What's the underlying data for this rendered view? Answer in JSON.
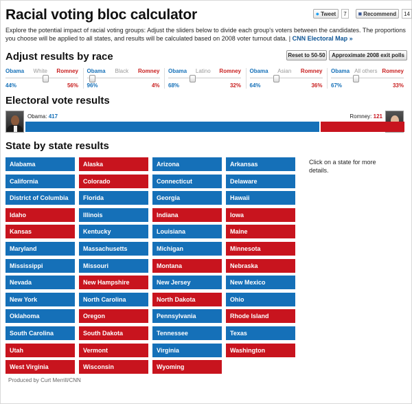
{
  "title": "Racial voting bloc calculator",
  "social": {
    "tweet_label": "Tweet",
    "tweet_count": "7",
    "recommend_label": "Recommend",
    "recommend_count": "14"
  },
  "intro": {
    "text": "Explore the potential impact of racial voting groups: Adjust the sliders below to divide each group's voters between the candidates. The proportions you choose will be applied to all states, and results will be calculated based on 2008 voter turnout data.",
    "separator": "|",
    "link": "CNN Electoral Map »"
  },
  "adjust": {
    "heading": "Adjust results by race",
    "reset_label": "Reset to 50-50",
    "approx_label": "Approximate 2008 exit polls"
  },
  "races": [
    {
      "name": "White",
      "left_label": "Obama",
      "right_label": "Romney",
      "obama_pct": "44%",
      "romney_pct": "56%",
      "obama_fraction": 0.44
    },
    {
      "name": "Black",
      "left_label": "Obama",
      "right_label": "Romney",
      "obama_pct": "96%",
      "romney_pct": "4%",
      "obama_fraction": 0.96
    },
    {
      "name": "Latino",
      "left_label": "Obama",
      "right_label": "Romney",
      "obama_pct": "68%",
      "romney_pct": "32%",
      "obama_fraction": 0.68
    },
    {
      "name": "Asian",
      "left_label": "Obama",
      "right_label": "Romney",
      "obama_pct": "64%",
      "romney_pct": "36%",
      "obama_fraction": 0.64
    },
    {
      "name": "All others",
      "left_label": "Obama",
      "right_label": "Romney",
      "obama_pct": "67%",
      "romney_pct": "33%",
      "obama_fraction": 0.67
    }
  ],
  "electoral": {
    "heading": "Electoral vote results",
    "obama_label": "Obama:",
    "obama_votes": "417",
    "romney_label": "Romney:",
    "romney_votes": "121",
    "obama_value": 417,
    "romney_value": 121
  },
  "states_section": {
    "heading": "State by state results",
    "note": "Click on a state for more details."
  },
  "states": [
    {
      "name": "Alabama",
      "winner": "obama"
    },
    {
      "name": "Alaska",
      "winner": "romney"
    },
    {
      "name": "Arizona",
      "winner": "obama"
    },
    {
      "name": "Arkansas",
      "winner": "obama"
    },
    {
      "name": "California",
      "winner": "obama"
    },
    {
      "name": "Colorado",
      "winner": "romney"
    },
    {
      "name": "Connecticut",
      "winner": "obama"
    },
    {
      "name": "Delaware",
      "winner": "obama"
    },
    {
      "name": "District of Columbia",
      "winner": "obama"
    },
    {
      "name": "Florida",
      "winner": "obama"
    },
    {
      "name": "Georgia",
      "winner": "obama"
    },
    {
      "name": "Hawaii",
      "winner": "obama"
    },
    {
      "name": "Idaho",
      "winner": "romney"
    },
    {
      "name": "Illinois",
      "winner": "obama"
    },
    {
      "name": "Indiana",
      "winner": "romney"
    },
    {
      "name": "Iowa",
      "winner": "romney"
    },
    {
      "name": "Kansas",
      "winner": "romney"
    },
    {
      "name": "Kentucky",
      "winner": "obama"
    },
    {
      "name": "Louisiana",
      "winner": "obama"
    },
    {
      "name": "Maine",
      "winner": "romney"
    },
    {
      "name": "Maryland",
      "winner": "obama"
    },
    {
      "name": "Massachusetts",
      "winner": "obama"
    },
    {
      "name": "Michigan",
      "winner": "obama"
    },
    {
      "name": "Minnesota",
      "winner": "romney"
    },
    {
      "name": "Mississippi",
      "winner": "obama"
    },
    {
      "name": "Missouri",
      "winner": "obama"
    },
    {
      "name": "Montana",
      "winner": "romney"
    },
    {
      "name": "Nebraska",
      "winner": "romney"
    },
    {
      "name": "Nevada",
      "winner": "obama"
    },
    {
      "name": "New Hampshire",
      "winner": "romney"
    },
    {
      "name": "New Jersey",
      "winner": "obama"
    },
    {
      "name": "New Mexico",
      "winner": "obama"
    },
    {
      "name": "New York",
      "winner": "obama"
    },
    {
      "name": "North Carolina",
      "winner": "obama"
    },
    {
      "name": "North Dakota",
      "winner": "romney"
    },
    {
      "name": "Ohio",
      "winner": "obama"
    },
    {
      "name": "Oklahoma",
      "winner": "obama"
    },
    {
      "name": "Oregon",
      "winner": "romney"
    },
    {
      "name": "Pennsylvania",
      "winner": "obama"
    },
    {
      "name": "Rhode Island",
      "winner": "romney"
    },
    {
      "name": "South Carolina",
      "winner": "obama"
    },
    {
      "name": "South Dakota",
      "winner": "romney"
    },
    {
      "name": "Tennessee",
      "winner": "obama"
    },
    {
      "name": "Texas",
      "winner": "obama"
    },
    {
      "name": "Utah",
      "winner": "romney"
    },
    {
      "name": "Vermont",
      "winner": "romney"
    },
    {
      "name": "Virginia",
      "winner": "obama"
    },
    {
      "name": "Washington",
      "winner": "romney"
    },
    {
      "name": "West Virginia",
      "winner": "romney"
    },
    {
      "name": "Wisconsin",
      "winner": "romney"
    },
    {
      "name": "Wyoming",
      "winner": "romney"
    }
  ],
  "colors": {
    "obama": "#1570b8",
    "romney": "#c8141e"
  },
  "footer": "Produced by Curt Merrill/CNN"
}
